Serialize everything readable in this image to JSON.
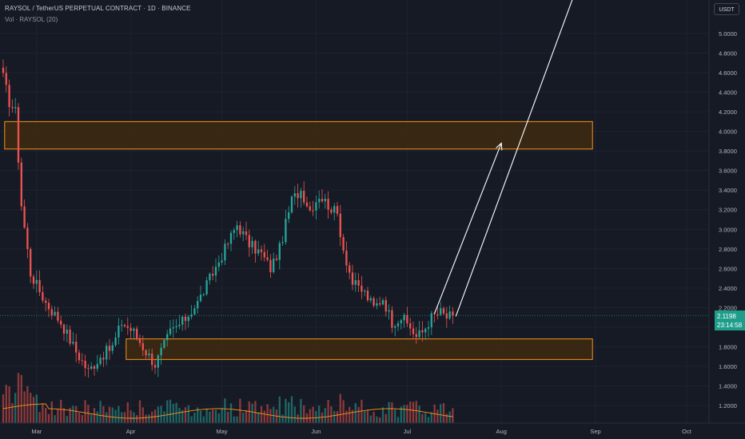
{
  "header": {
    "title": "RAYSOL / TetherUS PERPETUAL CONTRACT · 1D · BINANCE",
    "volume_label": "Vol · RAYSOL (20)"
  },
  "currency": "USDT",
  "last_price": {
    "value": "2.1198",
    "countdown": "23:14:58"
  },
  "colors": {
    "background": "#161a25",
    "up": "#26a69a",
    "down": "#ef5350",
    "zone_border": "#f7931a",
    "zone_fill": "#3d2a10",
    "volume_ma": "#f7931a",
    "projection": "#ffffff"
  },
  "chart_data": {
    "type": "candlestick",
    "y_axis": {
      "ticks": [
        "5.0000",
        "4.8000",
        "4.6000",
        "4.4000",
        "4.2000",
        "4.0000",
        "3.8000",
        "3.6000",
        "3.4000",
        "3.2000",
        "3.0000",
        "2.8000",
        "2.6000",
        "2.4000",
        "2.2000",
        "2.0000",
        "1.8000",
        "1.6000",
        "1.4000",
        "1.2000"
      ],
      "range": [
        1.13,
        5.13
      ],
      "last_price_line": 2.1198
    },
    "x_axis": {
      "ticks": [
        "Mar",
        "Apr",
        "May",
        "Jun",
        "Jul",
        "Aug",
        "Sep",
        "Oct"
      ],
      "start_date": "2025-02-18",
      "end_date": "2025-10-14"
    },
    "zones": [
      {
        "start": "2025-02-19",
        "end": "2025-08-31",
        "low": 3.82,
        "high": 4.1
      },
      {
        "start": "2025-03-31",
        "end": "2025-08-31",
        "low": 1.67,
        "high": 1.88
      }
    ],
    "projection_lines": [
      {
        "from": [
          "2025-07-10",
          2.14
        ],
        "to": [
          "2025-08-01",
          3.88
        ],
        "arrow": true
      },
      {
        "from": [
          "2025-07-17",
          2.11
        ],
        "to": [
          "2025-08-25",
          5.4
        ],
        "arrow": false
      }
    ]
  }
}
